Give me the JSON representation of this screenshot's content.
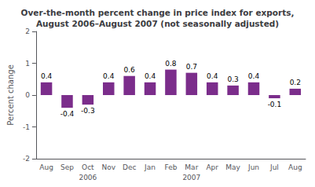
{
  "chart_data": {
    "type": "bar",
    "title": "Over-the-month percent change in price index for exports,\nAugust 2006–August 2007 (not seasonally adjusted)",
    "categories": [
      "Aug",
      "Sep",
      "Oct",
      "Nov",
      "Dec",
      "Jan",
      "Feb",
      "Mar",
      "Apr",
      "May",
      "Jun",
      "Jul",
      "Aug"
    ],
    "values": [
      0.4,
      -0.4,
      -0.3,
      0.4,
      0.6,
      0.4,
      0.8,
      0.7,
      0.4,
      0.3,
      0.4,
      -0.1,
      0.2
    ],
    "color": "#7B2D8B",
    "ylabel": "Percent change",
    "ylim": [
      -2,
      2
    ],
    "yticks": [
      -2,
      -1,
      0,
      1,
      2
    ],
    "grid": false,
    "data_labels": true,
    "annotations": [
      {
        "text": "2006",
        "x": "Oct"
      },
      {
        "text": "2007",
        "x": "Mar"
      }
    ]
  }
}
